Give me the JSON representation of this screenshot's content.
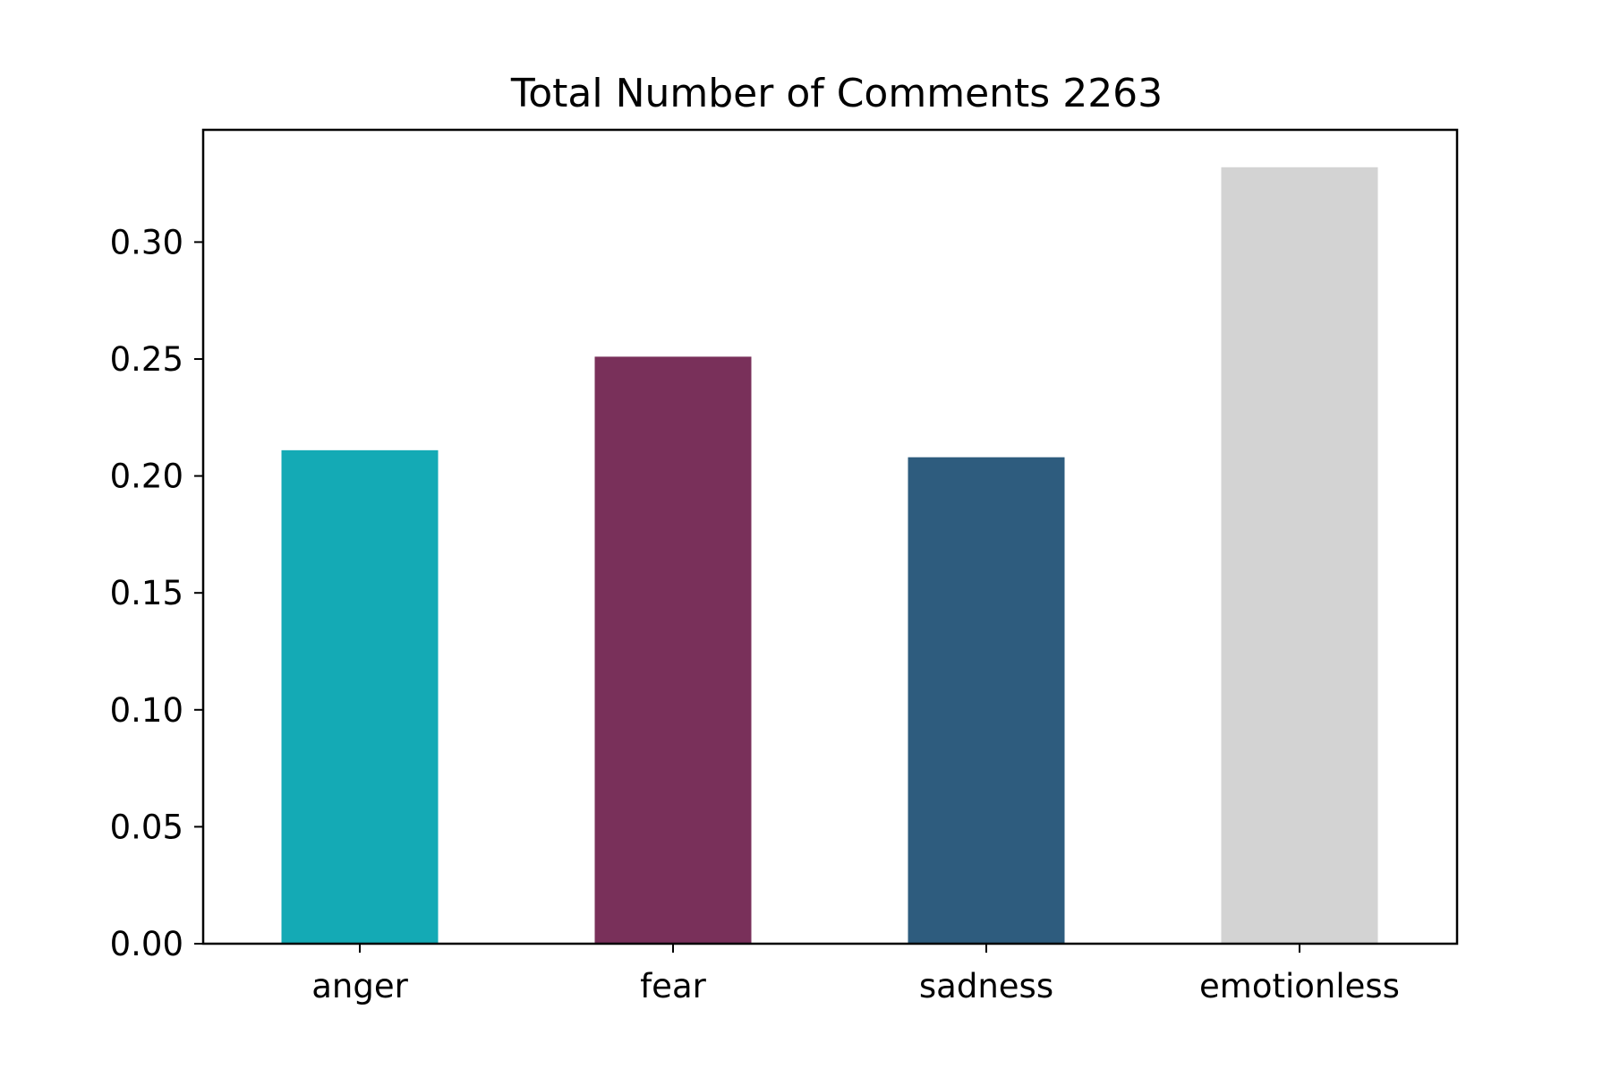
{
  "chart_data": {
    "type": "bar",
    "title": "Total Number of Comments 2263",
    "xlabel": "",
    "ylabel": "",
    "categories": [
      "anger",
      "fear",
      "sadness",
      "emotionless"
    ],
    "values": [
      0.211,
      0.251,
      0.208,
      0.332
    ],
    "colors": [
      "#14aab5",
      "#79305a",
      "#2e5c7e",
      "#d3d3d3"
    ],
    "ylim": [
      0,
      0.348
    ],
    "yticks": [
      0.0,
      0.05,
      0.1,
      0.15,
      0.2,
      0.25,
      0.3
    ],
    "ytick_labels": [
      "0.00",
      "0.05",
      "0.10",
      "0.15",
      "0.20",
      "0.25",
      "0.30"
    ],
    "grid": false,
    "legend": "none"
  }
}
